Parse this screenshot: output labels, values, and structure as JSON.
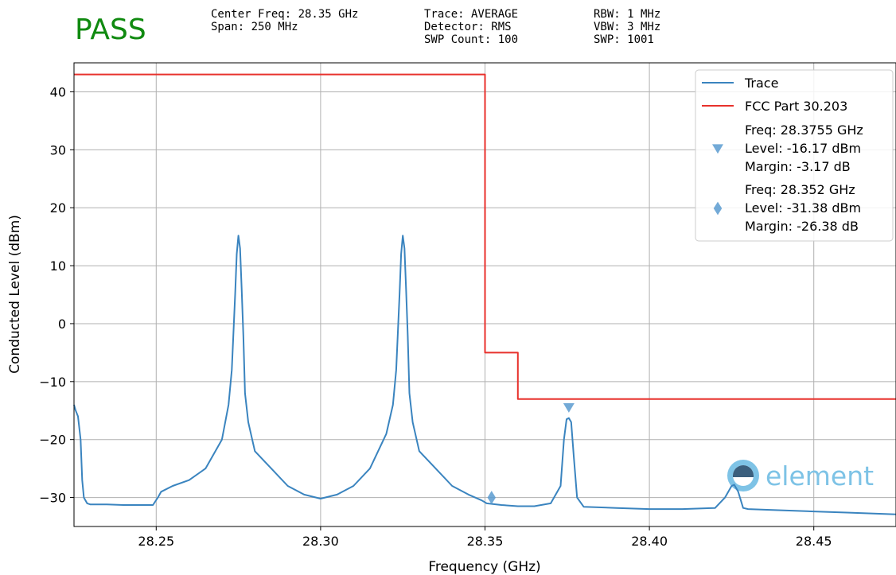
{
  "header": {
    "status": "PASS",
    "status_color": "#108a10",
    "col1": [
      "Center Freq: 28.35 GHz",
      "Span: 250 MHz"
    ],
    "col2": [
      "Trace: AVERAGE",
      "Detector: RMS",
      "SWP Count: 100"
    ],
    "col3": [
      "RBW: 1 MHz",
      "VBW: 3 MHz",
      "SWP: 1001"
    ]
  },
  "logo_text": "element",
  "chart_data": {
    "type": "line",
    "xlabel": "Frequency (GHz)",
    "ylabel": "Conducted Level (dBm)",
    "xlim": [
      28.225,
      28.475
    ],
    "ylim": [
      -35,
      45
    ],
    "xticks": [
      28.25,
      28.3,
      28.35,
      28.4,
      28.45
    ],
    "xtick_labels": [
      "28.25",
      "28.30",
      "28.35",
      "28.40",
      "28.45"
    ],
    "yticks": [
      -30,
      -20,
      -10,
      0,
      10,
      20,
      30,
      40
    ],
    "ytick_labels": [
      "−30",
      "−20",
      "−10",
      "0",
      "10",
      "20",
      "30",
      "40"
    ],
    "grid": true,
    "legend_position": "top-right",
    "series": [
      {
        "name": "Trace",
        "color": "#3a84bf",
        "x": [
          28.225,
          28.2255,
          28.2262,
          28.227,
          28.2275,
          28.228,
          28.229,
          28.23,
          28.235,
          28.24,
          28.245,
          28.249,
          28.2505,
          28.2515,
          28.255,
          28.26,
          28.265,
          28.27,
          28.272,
          28.273,
          28.274,
          28.2745,
          28.275,
          28.2755,
          28.276,
          28.2765,
          28.277,
          28.278,
          28.28,
          28.285,
          28.29,
          28.295,
          28.3,
          28.305,
          28.31,
          28.315,
          28.32,
          28.322,
          28.323,
          28.324,
          28.3245,
          28.325,
          28.3255,
          28.326,
          28.3265,
          28.327,
          28.328,
          28.33,
          28.335,
          28.34,
          28.345,
          28.349,
          28.3505,
          28.355,
          28.36,
          28.365,
          28.37,
          28.373,
          28.374,
          28.3748,
          28.3755,
          28.3762,
          28.377,
          28.378,
          28.38,
          28.39,
          28.4,
          28.41,
          28.42,
          28.423,
          28.425,
          28.4258,
          28.427,
          28.4285,
          28.43,
          28.44,
          28.45,
          28.46,
          28.47,
          28.475
        ],
        "y": [
          -14,
          -15,
          -16,
          -20,
          -27,
          -30,
          -31,
          -31.2,
          -31.2,
          -31.3,
          -31.3,
          -31.3,
          -30,
          -29,
          -28,
          -27,
          -25,
          -20,
          -14,
          -8,
          5,
          12,
          15.2,
          13,
          6,
          -2,
          -12,
          -17,
          -22,
          -25,
          -28,
          -29.5,
          -30.2,
          -29.5,
          -28,
          -25,
          -19,
          -14,
          -8,
          5,
          12,
          15.2,
          13,
          6,
          -2,
          -12,
          -17,
          -22,
          -25,
          -28,
          -29.5,
          -30.5,
          -31,
          -31.3,
          -31.5,
          -31.5,
          -31,
          -28,
          -20,
          -16.5,
          -16.3,
          -17,
          -23,
          -30,
          -31.6,
          -31.8,
          -32,
          -32,
          -31.8,
          -30,
          -28,
          -27.8,
          -29,
          -31.8,
          -32,
          -32.2,
          -32.4,
          -32.6,
          -32.8,
          -32.9
        ]
      },
      {
        "name": "FCC Part 30.203",
        "color": "#e8312c",
        "x": [
          28.225,
          28.35,
          28.35,
          28.36,
          28.36,
          28.475
        ],
        "y": [
          43,
          43,
          -5,
          -5,
          -13,
          -13
        ]
      }
    ],
    "markers": [
      {
        "shape": "triangle-down",
        "x": 28.3755,
        "y": -14.5,
        "color": "#5b9bd0",
        "legend": [
          "Freq: 28.3755 GHz",
          "Level: -16.17 dBm",
          "Margin: -3.17 dB"
        ]
      },
      {
        "shape": "diamond",
        "x": 28.352,
        "y": -30,
        "color": "#5b9bd0",
        "legend": [
          "Freq: 28.352 GHz",
          "Level: -31.38 dBm",
          "Margin: -26.38 dB"
        ]
      }
    ]
  }
}
